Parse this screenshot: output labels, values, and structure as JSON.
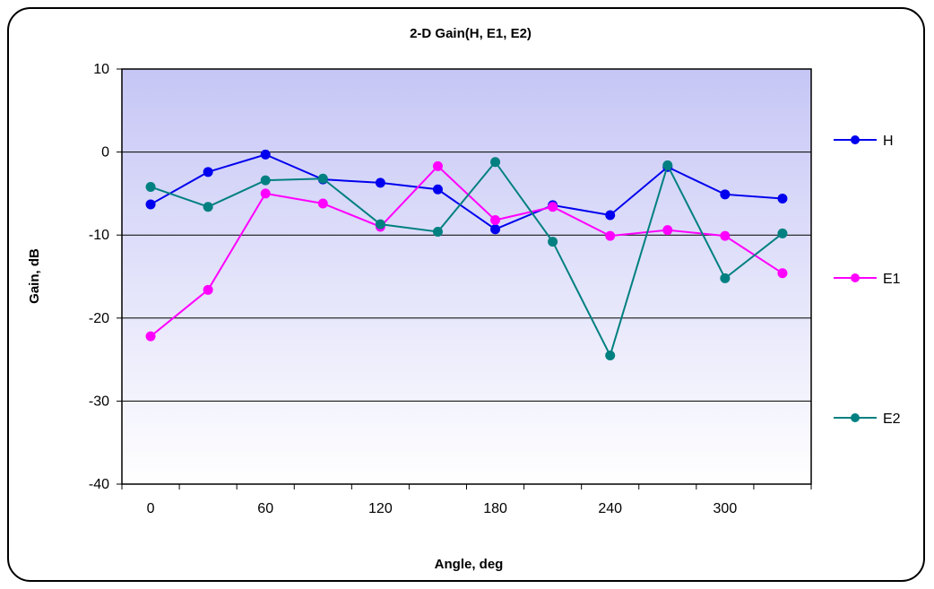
{
  "chart_data": {
    "type": "line",
    "title": "2-D Gain(H, E1, E2)",
    "xlabel": "Angle,  deg",
    "ylabel": "Gain, dB",
    "xlim": [
      -15,
      345
    ],
    "ylim": [
      -40,
      10
    ],
    "x_ticks": [
      0,
      60,
      120,
      180,
      240,
      300
    ],
    "y_ticks": [
      10,
      0,
      -10,
      -20,
      -30,
      -40
    ],
    "grid": "horizontal",
    "legend_position": "right",
    "x": [
      0,
      30,
      60,
      90,
      120,
      150,
      180,
      210,
      240,
      270,
      300,
      330
    ],
    "series": [
      {
        "name": "H",
        "color": "#0000ee",
        "values": [
          -6.3,
          -2.4,
          -0.3,
          -3.3,
          -3.7,
          -4.5,
          -9.3,
          -6.4,
          -7.6,
          -1.8,
          -5.1,
          -5.6
        ]
      },
      {
        "name": "E1",
        "color": "#ff00ff",
        "values": [
          -22.2,
          -16.6,
          -5.0,
          -6.2,
          -9.0,
          -1.7,
          -8.2,
          -6.6,
          -10.1,
          -9.4,
          -10.1,
          -14.6
        ]
      },
      {
        "name": "E2",
        "color": "#008080",
        "values": [
          -4.2,
          -6.6,
          -3.4,
          -3.2,
          -8.7,
          -9.6,
          -1.2,
          -10.8,
          -24.5,
          -1.6,
          -15.2,
          -9.8
        ]
      }
    ]
  }
}
